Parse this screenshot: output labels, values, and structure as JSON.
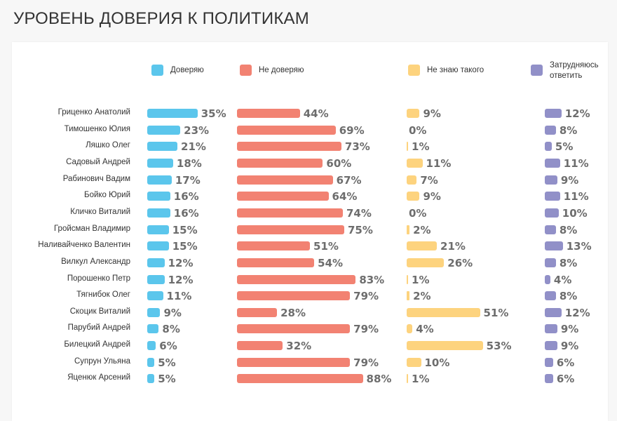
{
  "title": "УРОВЕНЬ ДОВЕРИЯ К ПОЛИТИКАМ",
  "colors": {
    "trust": "#5bc6ec",
    "distrust": "#f28272",
    "unknown": "#fdd37e",
    "hard": "#9190c8",
    "value_text": "#6d6d6d"
  },
  "legend": [
    {
      "label": "Доверяю",
      "color": "#5bc6ec"
    },
    {
      "label": "Не доверяю",
      "color": "#f28272"
    },
    {
      "label": "Не знаю такого",
      "color": "#fdd37e"
    },
    {
      "label": "Затрудняюсь ответить",
      "color": "#9190c8"
    }
  ],
  "chart_data": {
    "type": "bar",
    "title": "УРОВЕНЬ ДОВЕРИЯ К ПОЛИТИКАМ",
    "orientation": "horizontal",
    "unit": "%",
    "categories": [
      "Гриценко Анатолий",
      "Тимошенко Юлия",
      "Ляшко Олег",
      "Садовый Андрей",
      "Рабинович Вадим",
      "Бойко Юрий",
      "Кличко Виталий",
      "Гройсман Владимир",
      "Наливайченко Валентин",
      "Вилкул Александр",
      "Порошенко Петр",
      "Тягнибок Олег",
      "Скоцик Виталий",
      "Парубий Андрей",
      "Билецкий Андрей",
      "Супрун Ульяна",
      "Яценюк Арсений"
    ],
    "series": [
      {
        "name": "Доверяю",
        "values": [
          35,
          23,
          21,
          18,
          17,
          16,
          16,
          15,
          15,
          12,
          12,
          11,
          9,
          8,
          6,
          5,
          5
        ]
      },
      {
        "name": "Не доверяю",
        "values": [
          44,
          69,
          73,
          60,
          67,
          64,
          74,
          75,
          51,
          54,
          83,
          79,
          28,
          79,
          32,
          79,
          88
        ]
      },
      {
        "name": "Не знаю такого",
        "values": [
          9,
          0,
          1,
          11,
          7,
          9,
          0,
          2,
          21,
          26,
          1,
          2,
          51,
          4,
          53,
          10,
          1
        ]
      },
      {
        "name": "Затрудняюсь ответить",
        "values": [
          12,
          8,
          5,
          11,
          9,
          11,
          10,
          8,
          13,
          8,
          4,
          8,
          12,
          9,
          9,
          6,
          6
        ]
      }
    ],
    "labels": {
      "trust": [
        "35%",
        "23%",
        "21%",
        "18%",
        "17%",
        "16%",
        "16%",
        "15%",
        "15%",
        "12%",
        "12%",
        "11%",
        "9%",
        "8%",
        "6%",
        "5%",
        "5%"
      ],
      "distrust": [
        "44%",
        "69%",
        "73%",
        "60%",
        "67%",
        "64%",
        "74%",
        "75%",
        "51%",
        "54%",
        "83%",
        "79%",
        "28%",
        "79%",
        "32%",
        "79%",
        "88%"
      ],
      "unknown": [
        "9%",
        "0%",
        "1%",
        "11%",
        "7%",
        "9%",
        "0%",
        "2%",
        "21%",
        "26%",
        "1%",
        "2%",
        "51%",
        "4%",
        "53%",
        "10%",
        "1%"
      ],
      "hard": [
        "12%",
        "8%",
        "5%",
        "11%",
        "9%",
        "11%",
        "10%",
        "8%",
        "13%",
        "8%",
        "4%",
        "8%",
        "12%",
        "9%",
        "9%",
        "6%",
        "6%"
      ]
    },
    "legend_position": "top"
  }
}
